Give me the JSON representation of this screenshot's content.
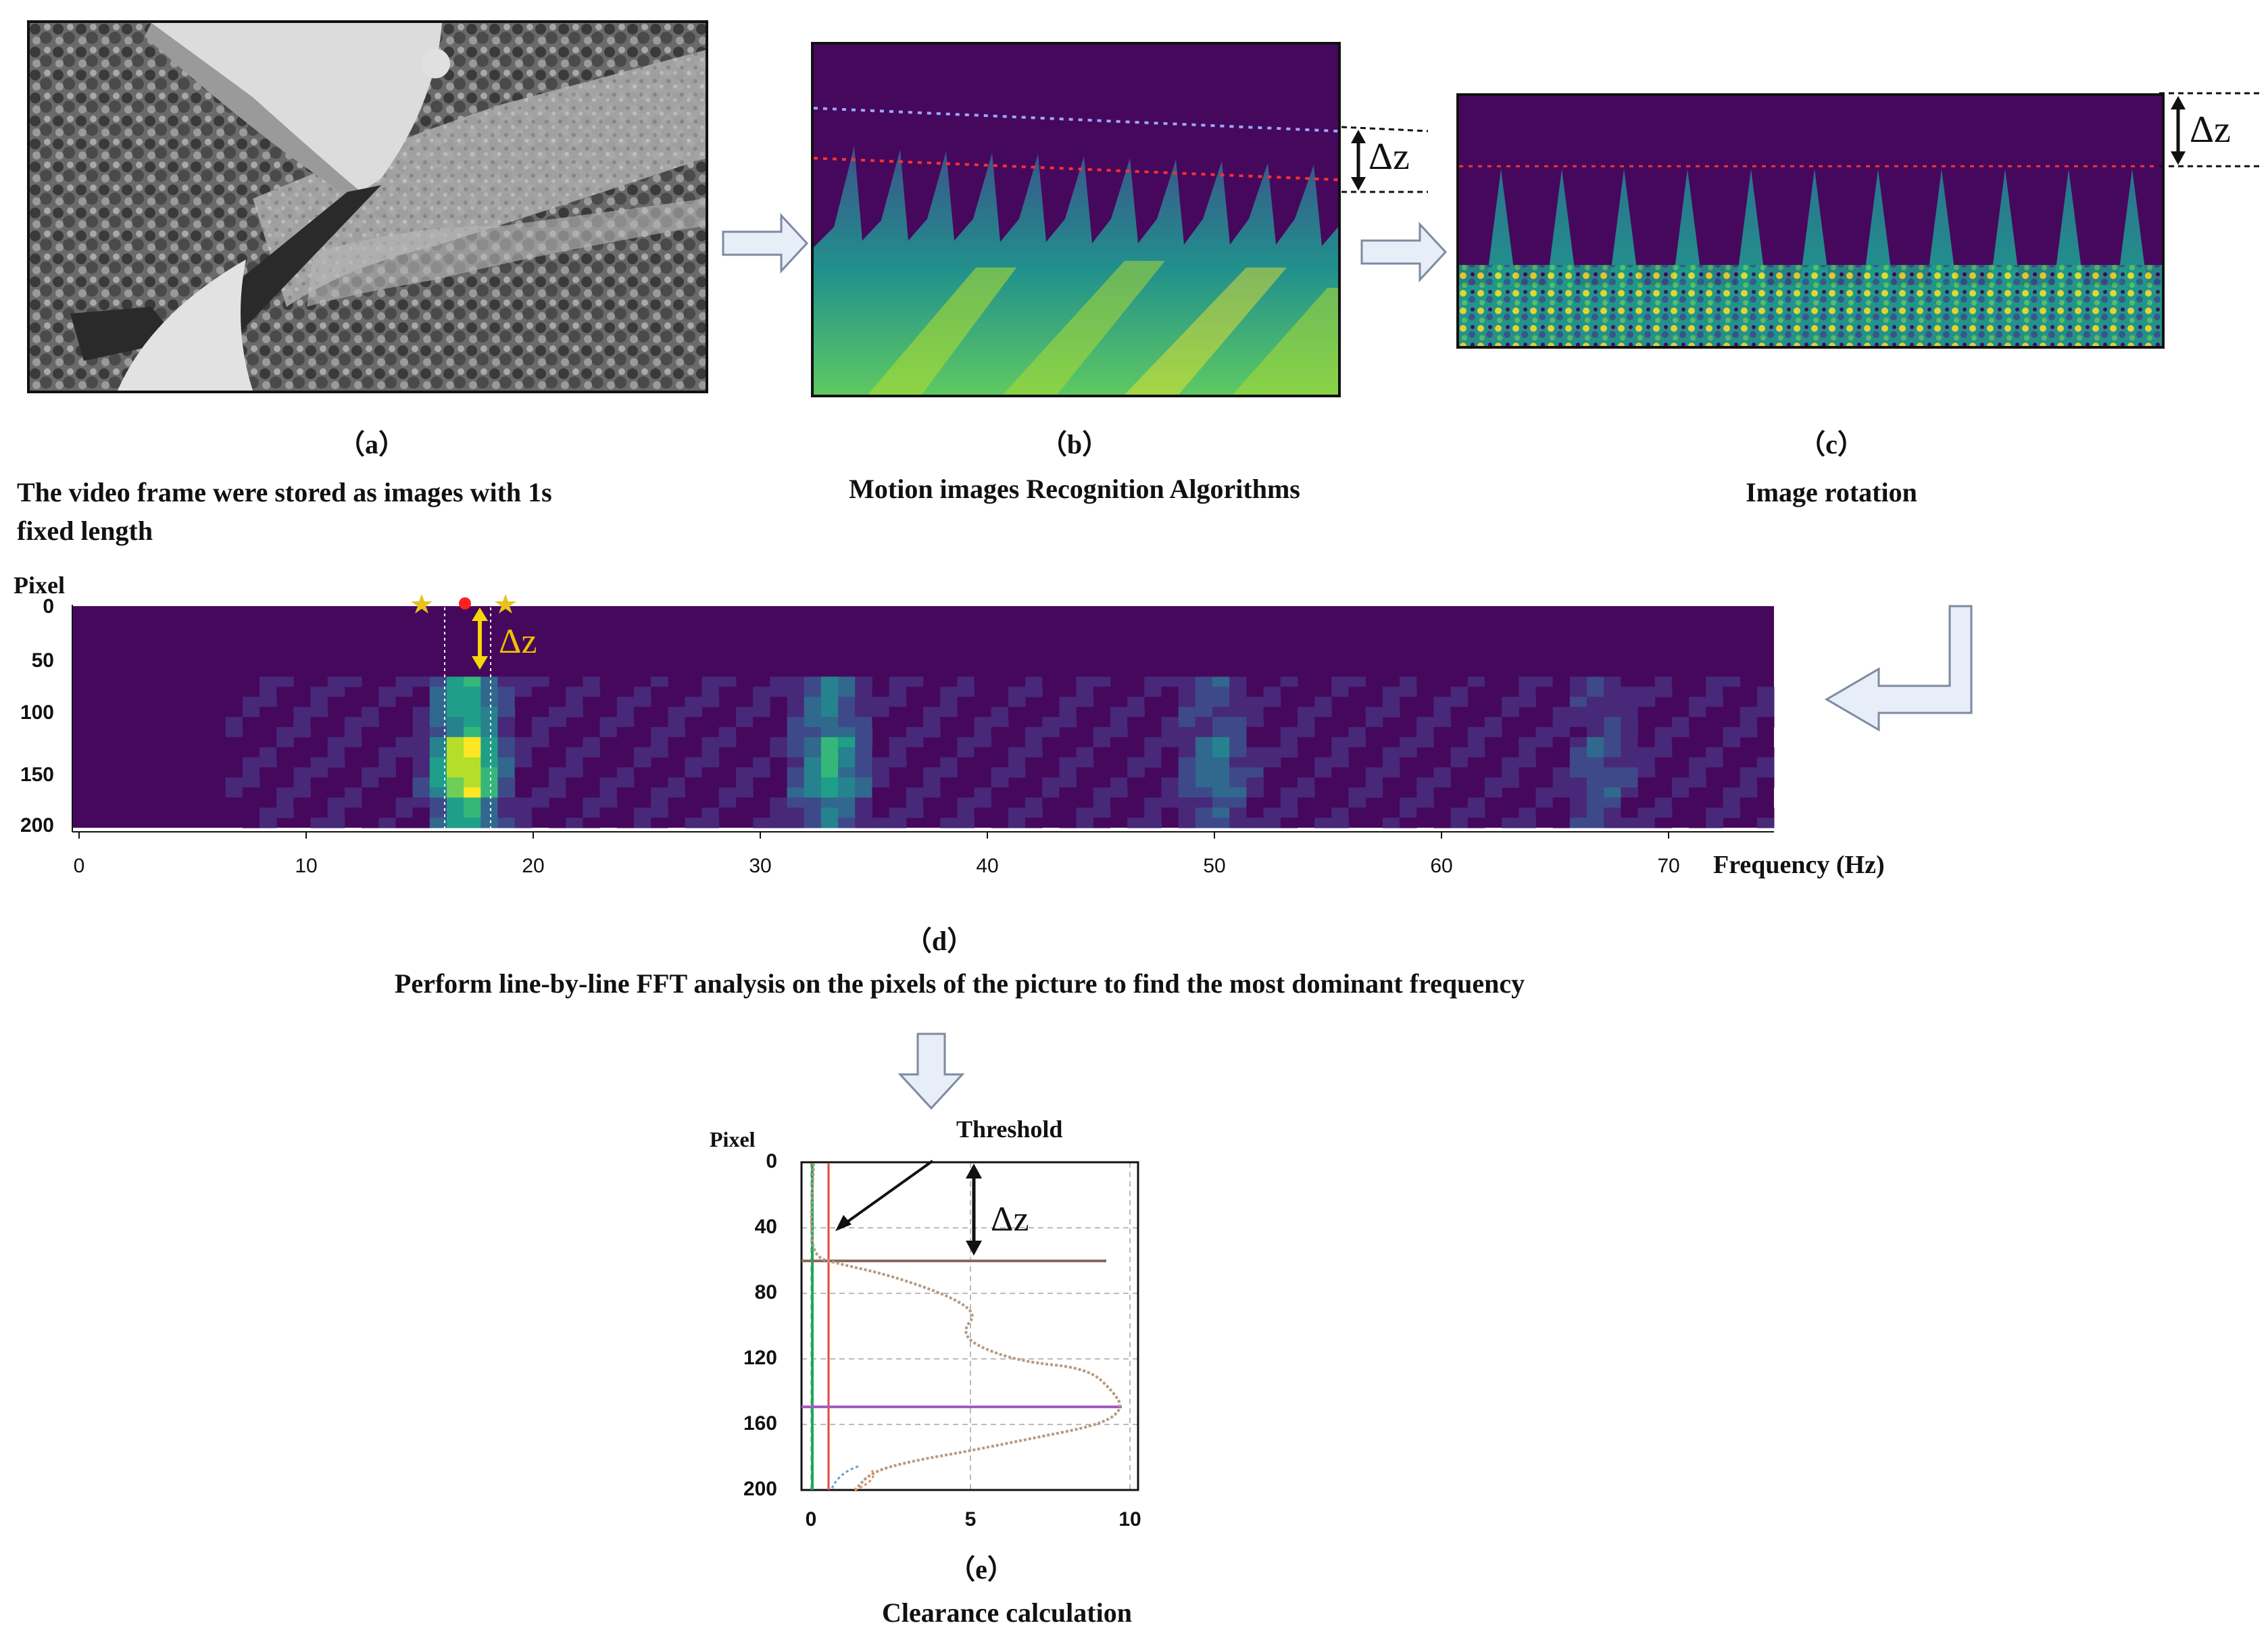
{
  "panel_a": {
    "label": "（a）",
    "caption_line1": "The video frame were stored as images with 1s",
    "caption_line2": "fixed length"
  },
  "panel_b": {
    "label": "（b）",
    "caption": "Motion images Recognition Algorithms",
    "delta_label": "Δz"
  },
  "panel_c": {
    "label": "（c）",
    "caption": "Image rotation",
    "delta_label": "Δz"
  },
  "panel_d": {
    "label": "（d）",
    "caption": "Perform line-by-line FFT analysis on the pixels of the picture to find the most dominant frequency",
    "y_axis_label": "Pixel",
    "x_axis_label": "Frequency (Hz)",
    "delta_label": "Δz",
    "y_ticks": [
      "0",
      "50",
      "100",
      "150",
      "200"
    ],
    "x_ticks": [
      "0",
      "10",
      "20",
      "30",
      "40",
      "50",
      "60",
      "70"
    ]
  },
  "panel_e": {
    "label": "（e）",
    "caption": "Clearance calculation",
    "y_axis_label": "Pixel",
    "threshold_label": "Threshold",
    "delta_label": "Δz",
    "y_ticks": [
      "0",
      "40",
      "80",
      "120",
      "160",
      "200"
    ],
    "x_ticks": [
      "0",
      "5",
      "10"
    ]
  },
  "colors": {
    "viridis_dark": "#440154",
    "viridis_bg": "#46085c",
    "viridis_mid": "#21918c",
    "viridis_green": "#5ec962",
    "viridis_yellow": "#fde725",
    "arrow_fill": "#e8eef8",
    "arrow_stroke": "#7d8aa0",
    "profile_line": "#b59a82",
    "threshold_red": "#e8483e",
    "threshold_green": "#1aaa5a",
    "marker_brown": "#8a6a5e",
    "marker_purple": "#a45bc0"
  }
}
